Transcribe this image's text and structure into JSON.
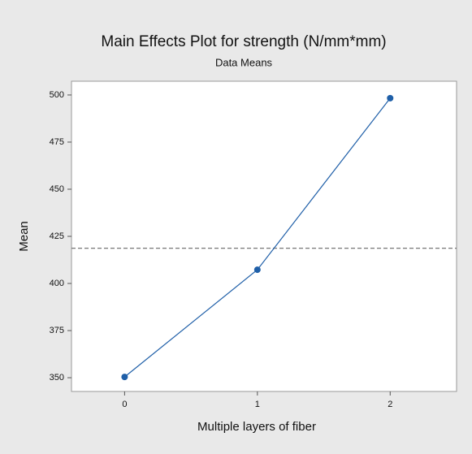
{
  "chart_data": {
    "type": "line",
    "title": "Main Effects Plot for strength (N/mm*mm)",
    "subtitle": "Data Means",
    "x_label": "Multiple layers of fiber",
    "y_label": "Mean",
    "x": [
      0,
      1,
      2
    ],
    "series": [
      {
        "name": "strength",
        "color": "#1f5fa8",
        "values": [
          350.4,
          407.3,
          498.3
        ]
      }
    ],
    "reference_line": 418.7,
    "xlim": [
      -0.4,
      2.5
    ],
    "xticks": [
      0,
      1,
      2
    ],
    "ylim": [
      342.7,
      507.3
    ],
    "yticks": [
      350,
      375,
      400,
      425,
      450,
      475,
      500
    ],
    "grid": false
  }
}
